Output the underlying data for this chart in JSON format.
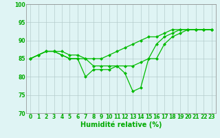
{
  "background_color": "#dff4f4",
  "grid_color": "#b0c8c8",
  "line_color": "#00bb00",
  "marker_color": "#00bb00",
  "xlabel": "Humidité relative (%)",
  "xlabel_color": "#00aa00",
  "xlabel_fontsize": 7,
  "tick_color": "#00aa00",
  "tick_fontsize": 5.5,
  "ylim": [
    70,
    100
  ],
  "xlim": [
    -0.5,
    23.5
  ],
  "yticks": [
    70,
    75,
    80,
    85,
    90,
    95,
    100
  ],
  "xticks": [
    0,
    1,
    2,
    3,
    4,
    5,
    6,
    7,
    8,
    9,
    10,
    11,
    12,
    13,
    14,
    15,
    16,
    17,
    18,
    19,
    20,
    21,
    22,
    23
  ],
  "series": [
    {
      "x": [
        0,
        1,
        2,
        3,
        4,
        5,
        6,
        7,
        8,
        9,
        10,
        11,
        12,
        13,
        14,
        15,
        16,
        17,
        18,
        19,
        20,
        21,
        22,
        23
      ],
      "y": [
        85,
        86,
        87,
        87,
        87,
        86,
        86,
        85,
        85,
        85,
        86,
        87,
        88,
        89,
        90,
        91,
        91,
        92,
        93,
        93,
        93,
        93,
        93,
        93
      ]
    },
    {
      "x": [
        0,
        1,
        2,
        3,
        4,
        5,
        6,
        7,
        8,
        9,
        10,
        11,
        12,
        13,
        14,
        15,
        16,
        17,
        18,
        19,
        20,
        21,
        22,
        23
      ],
      "y": [
        85,
        86,
        87,
        87,
        86,
        85,
        85,
        85,
        83,
        83,
        83,
        83,
        83,
        83,
        84,
        85,
        89,
        91,
        92,
        93,
        93,
        93,
        93,
        93
      ]
    },
    {
      "x": [
        0,
        1,
        2,
        3,
        4,
        5,
        6,
        7,
        8,
        9,
        10,
        11,
        12,
        13,
        14,
        15,
        16,
        17,
        18,
        19,
        20,
        21,
        22,
        23
      ],
      "y": [
        85,
        86,
        87,
        87,
        86,
        85,
        85,
        80,
        82,
        82,
        82,
        83,
        81,
        76,
        77,
        85,
        85,
        89,
        91,
        92,
        93,
        93,
        93,
        93
      ]
    }
  ]
}
